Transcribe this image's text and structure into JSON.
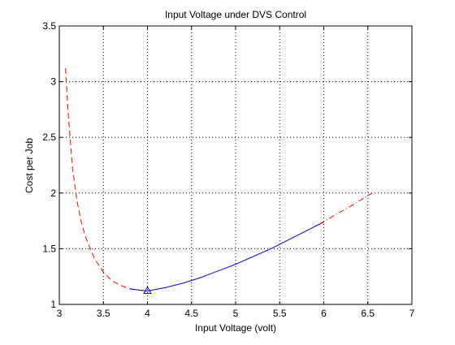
{
  "chart_data": {
    "type": "line",
    "title": "Input Voltage under DVS Control",
    "xlabel": "Input Voltage (volt)",
    "ylabel": "Cost per Job",
    "xlim": [
      3,
      7
    ],
    "ylim": [
      1,
      3.5
    ],
    "grid": true,
    "xticks": [
      3,
      3.5,
      4,
      4.5,
      5,
      5.5,
      6,
      6.5,
      7
    ],
    "xtick_labels": [
      "3",
      "3.5",
      "4",
      "4.5",
      "5",
      "5.5",
      "6",
      "6.5",
      "7"
    ],
    "yticks": [
      1,
      1.5,
      2,
      2.5,
      3,
      3.5
    ],
    "ytick_labels": [
      "1",
      "1.5",
      "2",
      "2.5",
      "3",
      "3.5"
    ],
    "series": [
      {
        "style": "dashed",
        "color": "#ff0000",
        "x": [
          3.07,
          3.1,
          3.15,
          3.2,
          3.25,
          3.3,
          3.4,
          3.5,
          3.6,
          3.7,
          3.8,
          3.9,
          4.0
        ],
        "y": [
          3.12,
          2.72,
          2.22,
          1.93,
          1.74,
          1.6,
          1.41,
          1.29,
          1.21,
          1.17,
          1.14,
          1.13,
          1.12
        ]
      },
      {
        "style": "solid",
        "color": "#0000ff",
        "x": [
          3.8,
          3.9,
          4.0,
          4.2,
          4.4,
          4.6,
          4.8,
          5.0,
          5.2,
          5.4,
          5.6,
          5.8,
          6.0
        ],
        "y": [
          1.14,
          1.13,
          1.12,
          1.15,
          1.19,
          1.24,
          1.3,
          1.36,
          1.43,
          1.5,
          1.58,
          1.66,
          1.74
        ]
      },
      {
        "style": "dashdot",
        "color": "#ff0000",
        "x": [
          5.95,
          6.1,
          6.3,
          6.55
        ],
        "y": [
          1.72,
          1.79,
          1.88,
          2.0
        ]
      }
    ],
    "markers": [
      {
        "shape": "triangle",
        "color": "#0000ff",
        "x": 4.0,
        "y": 1.12
      }
    ]
  }
}
